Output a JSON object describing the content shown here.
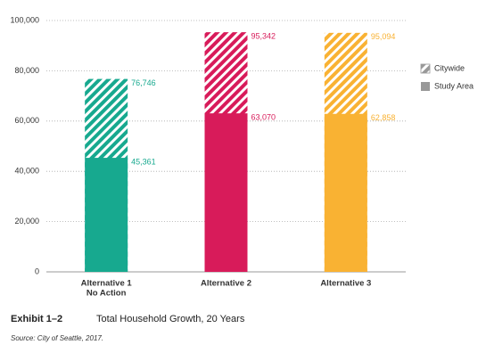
{
  "chart_data": {
    "type": "overlay-bar",
    "exhibit": "Exhibit 1–2",
    "title": "Total Household Growth, 20 Years",
    "source": "Source: City of Seattle, 2017.",
    "categories": [
      [
        "Alternative 1",
        "No Action"
      ],
      [
        "Alternative 2"
      ],
      [
        "Alternative 3"
      ]
    ],
    "bar_colors": [
      "#17a98f",
      "#d81b5a",
      "#f9b233"
    ],
    "legend_color": "#999999",
    "series": [
      {
        "name": "Citywide",
        "pattern": "hatched",
        "values": [
          76746,
          95342,
          95094
        ],
        "value_labels": [
          "76,746",
          "95,342",
          "95,094"
        ]
      },
      {
        "name": "Study Area",
        "pattern": "solid",
        "values": [
          45361,
          63070,
          62858
        ],
        "value_labels": [
          "45,361",
          "63,070",
          "62,858"
        ]
      }
    ],
    "ylim": [
      0,
      100000
    ],
    "yticks": [
      0,
      {
        "value": 20000,
        "label": "20,000"
      },
      {
        "value": 40000,
        "label": "40,000"
      },
      {
        "value": 60000,
        "label": "60,000"
      },
      {
        "value": 80000,
        "label": "80,000"
      },
      {
        "value": 100000,
        "label": "100,000"
      }
    ],
    "grid": true
  }
}
